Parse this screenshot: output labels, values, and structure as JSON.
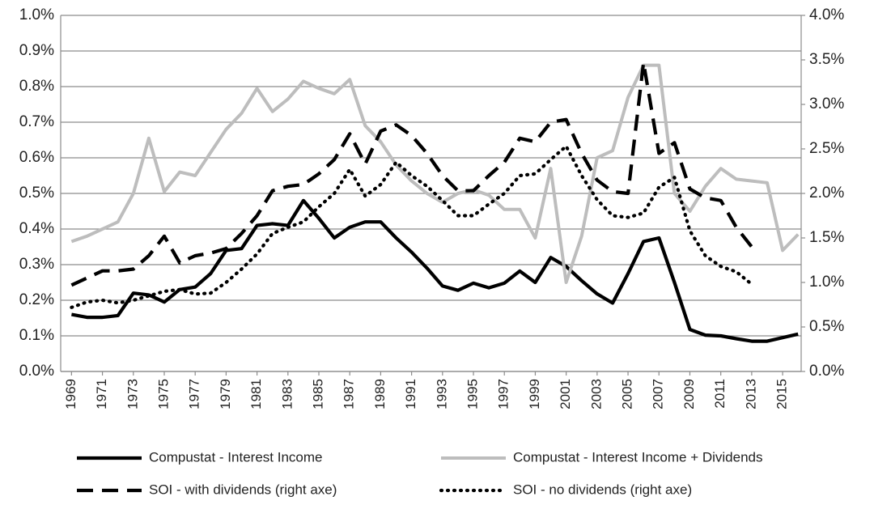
{
  "chart_data": {
    "type": "line",
    "x": [
      1969,
      1970,
      1971,
      1972,
      1973,
      1974,
      1975,
      1976,
      1977,
      1978,
      1979,
      1980,
      1981,
      1982,
      1983,
      1984,
      1985,
      1986,
      1987,
      1988,
      1989,
      1990,
      1991,
      1992,
      1993,
      1994,
      1995,
      1996,
      1997,
      1998,
      1999,
      2000,
      2001,
      2002,
      2003,
      2004,
      2005,
      2006,
      2007,
      2008,
      2009,
      2010,
      2011,
      2012,
      2013,
      2014,
      2015,
      2016
    ],
    "xlim": [
      1968.3,
      2016.2
    ],
    "xticks": [
      1969,
      1971,
      1973,
      1975,
      1977,
      1979,
      1981,
      1983,
      1985,
      1987,
      1989,
      1991,
      1993,
      1995,
      1997,
      1999,
      2001,
      2003,
      2005,
      2007,
      2009,
      2011,
      2013,
      2015
    ],
    "ylim": [
      0,
      1.0
    ],
    "yticks": [
      {
        "value": 0,
        "label": "0.0%"
      },
      {
        "value": 0.1,
        "label": "0.1%"
      },
      {
        "value": 0.2,
        "label": "0.2%"
      },
      {
        "value": 0.3,
        "label": "0.3%"
      },
      {
        "value": 0.4,
        "label": "0.4%"
      },
      {
        "value": 0.5,
        "label": "0.5%"
      },
      {
        "value": 0.6,
        "label": "0.6%"
      },
      {
        "value": 0.7,
        "label": "0.7%"
      },
      {
        "value": 0.8,
        "label": "0.8%"
      },
      {
        "value": 0.9,
        "label": "0.9%"
      },
      {
        "value": 1.0,
        "label": "1.0%"
      }
    ],
    "y2lim": [
      0,
      4.0
    ],
    "y2ticks": [
      {
        "value": 0,
        "label": "0.0%"
      },
      {
        "value": 0.5,
        "label": "0.5%"
      },
      {
        "value": 1.0,
        "label": "1.0%"
      },
      {
        "value": 1.5,
        "label": "1.5%"
      },
      {
        "value": 2.0,
        "label": "2.0%"
      },
      {
        "value": 2.5,
        "label": "2.5%"
      },
      {
        "value": 3.0,
        "label": "3.0%"
      },
      {
        "value": 3.5,
        "label": "3.5%"
      },
      {
        "value": 4.0,
        "label": "4.0%"
      }
    ],
    "grid": true,
    "legend": "bottom",
    "series": [
      {
        "name": "Compustat - Interest Income",
        "color": "#000000",
        "style": "solid",
        "values": [
          0.16,
          0.152,
          0.152,
          0.157,
          0.22,
          0.215,
          0.195,
          0.23,
          0.237,
          0.275,
          0.34,
          0.345,
          0.41,
          0.415,
          0.41,
          0.48,
          0.43,
          0.375,
          0.405,
          0.42,
          0.42,
          0.375,
          0.335,
          0.29,
          0.24,
          0.228,
          0.248,
          0.235,
          0.248,
          0.282,
          0.25,
          0.32,
          0.295,
          0.255,
          0.218,
          0.192,
          0.275,
          0.365,
          0.375,
          0.25,
          0.118,
          0.102,
          0.1,
          0.092,
          0.085,
          0.085,
          0.095,
          0.105
        ]
      },
      {
        "name": "Compustat - Interest Income + Dividends",
        "color": "#bdbdbd",
        "style": "solid",
        "values": [
          0.365,
          0.38,
          0.4,
          0.42,
          0.5,
          0.655,
          0.505,
          0.56,
          0.55,
          0.615,
          0.68,
          0.725,
          0.795,
          0.73,
          0.765,
          0.815,
          0.795,
          0.78,
          0.82,
          0.69,
          0.645,
          0.58,
          0.535,
          0.5,
          0.475,
          0.5,
          0.51,
          0.495,
          0.455,
          0.455,
          0.375,
          0.57,
          0.25,
          0.38,
          0.6,
          0.62,
          0.77,
          0.86,
          0.86,
          0.5,
          0.45,
          0.52,
          0.57,
          0.54,
          0.535,
          0.53,
          0.34,
          0.385
        ]
      },
      {
        "name": "SOI - with dividends (right axe)",
        "color": "#000000",
        "style": "dashed",
        "axis": "y2",
        "values": [
          0.97,
          1.05,
          1.13,
          1.13,
          1.15,
          1.3,
          1.52,
          1.22,
          1.3,
          1.33,
          1.38,
          1.55,
          1.75,
          2.03,
          2.08,
          2.1,
          2.22,
          2.38,
          2.67,
          2.33,
          2.7,
          2.77,
          2.65,
          2.45,
          2.2,
          2.03,
          2.03,
          2.2,
          2.35,
          2.62,
          2.58,
          2.8,
          2.83,
          2.45,
          2.15,
          2.02,
          2.0,
          3.47,
          2.45,
          2.57,
          2.05,
          1.95,
          1.92,
          1.62,
          1.4,
          null,
          null,
          null
        ]
      },
      {
        "name": "SOI - no dividends (right axe)",
        "color": "#000000",
        "style": "dotted",
        "axis": "y2",
        "values": [
          0.72,
          0.78,
          0.8,
          0.77,
          0.8,
          0.85,
          0.9,
          0.92,
          0.87,
          0.88,
          1.0,
          1.15,
          1.32,
          1.55,
          1.62,
          1.68,
          1.85,
          2.0,
          2.27,
          1.97,
          2.1,
          2.35,
          2.2,
          2.08,
          1.92,
          1.75,
          1.75,
          1.88,
          2.0,
          2.2,
          2.22,
          2.38,
          2.53,
          2.2,
          1.93,
          1.75,
          1.73,
          1.78,
          2.07,
          2.18,
          1.58,
          1.3,
          1.18,
          1.12,
          0.98,
          null,
          null,
          null
        ]
      }
    ]
  }
}
